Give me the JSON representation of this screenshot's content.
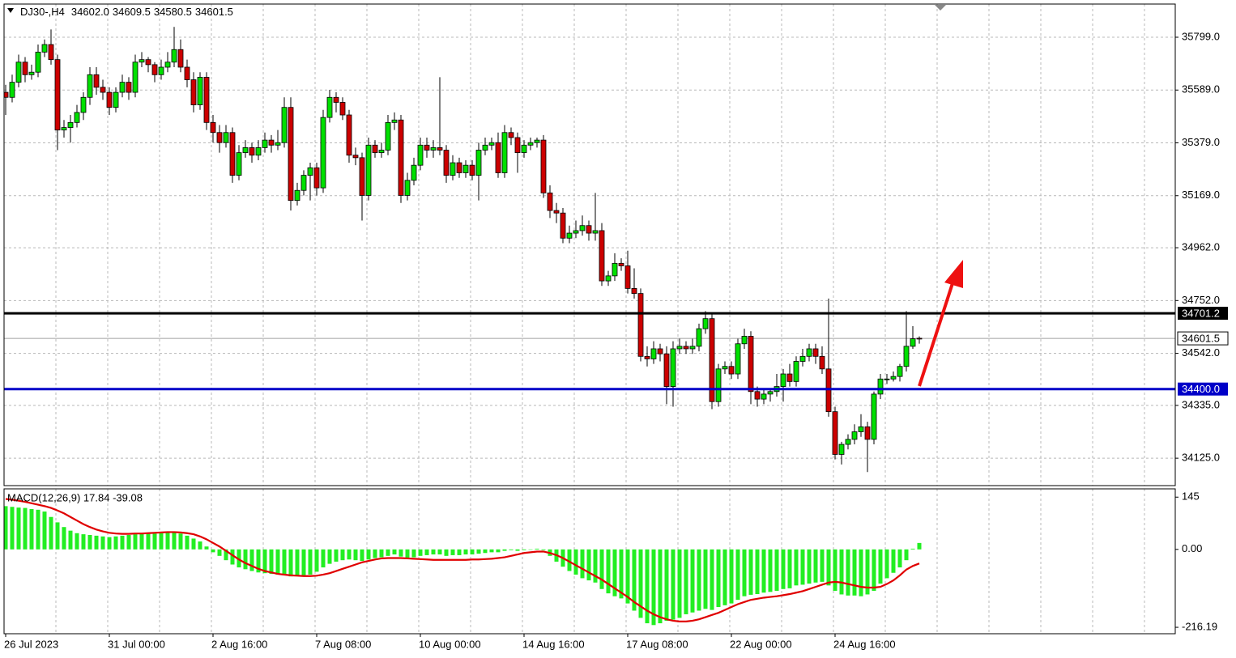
{
  "chart_data": [
    {
      "type": "candlestick",
      "symbol": "DJ30-,H4",
      "ohlc_labels": [
        "34602.0",
        "34609.5",
        "34580.5",
        "34601.5"
      ],
      "categories": [
        "26 Jul 2023",
        null,
        null,
        null,
        null,
        null,
        null,
        null,
        null,
        null,
        null,
        null,
        null,
        null,
        null,
        null,
        "31 Jul 00:00",
        null,
        null,
        null,
        null,
        null,
        null,
        null,
        null,
        null,
        null,
        null,
        null,
        null,
        null,
        null,
        "2 Aug 16:00",
        null,
        null,
        null,
        null,
        null,
        null,
        null,
        null,
        null,
        null,
        null,
        null,
        null,
        null,
        null,
        "7 Aug 08:00",
        null,
        null,
        null,
        null,
        null,
        null,
        null,
        null,
        null,
        null,
        null,
        null,
        null,
        null,
        null,
        "10 Aug 00:00",
        null,
        null,
        null,
        null,
        null,
        null,
        null,
        null,
        null,
        null,
        null,
        null,
        null,
        null,
        null,
        "14 Aug 16:00",
        null,
        null,
        null,
        null,
        null,
        null,
        null,
        null,
        null,
        null,
        null,
        null,
        null,
        null,
        null,
        "17 Aug 08:00",
        null,
        null,
        null,
        null,
        null,
        null,
        null,
        null,
        null,
        null,
        null,
        null,
        null,
        null,
        null,
        "22 Aug 00:00",
        null,
        null,
        null,
        null,
        null,
        null,
        null,
        null,
        null,
        null,
        null,
        null,
        null,
        null,
        null,
        "24 Aug 16:00",
        null,
        null,
        null,
        null,
        null,
        null,
        null,
        null,
        null,
        null,
        null,
        null,
        null
      ],
      "open": [
        35580,
        35560,
        35620,
        35700,
        35650,
        35660,
        35740,
        35770,
        35710,
        35430,
        35440,
        35460,
        35500,
        35560,
        35650,
        35600,
        35580,
        35520,
        35580,
        35620,
        35580,
        35700,
        35710,
        35690,
        35650,
        35680,
        35700,
        35750,
        35680,
        35630,
        35530,
        35640,
        35460,
        35420,
        35380,
        35420,
        35250,
        35340,
        35360,
        35330,
        35360,
        35390,
        35370,
        35380,
        35520,
        35150,
        35190,
        35250,
        35280,
        35200,
        35480,
        35560,
        35540,
        35490,
        35330,
        35320,
        35170,
        35370,
        35340,
        35350,
        35460,
        35470,
        35170,
        35230,
        35290,
        35370,
        35350,
        35360,
        35350,
        35250,
        35300,
        35260,
        35290,
        35250,
        35350,
        35370,
        35380,
        35260,
        35420,
        35400,
        35340,
        35370,
        35380,
        35390,
        35180,
        35110,
        35100,
        35000,
        35020,
        35030,
        35050,
        35020,
        35030,
        34830,
        34850,
        34900,
        34890,
        34800,
        34780,
        34530,
        34520,
        34560,
        34540,
        34410,
        34560,
        34570,
        34560,
        34570,
        34640,
        34680,
        34350,
        34480,
        34490,
        34460,
        34580,
        34610,
        34390,
        34360,
        34380,
        34390,
        34410,
        34460,
        34430,
        34510,
        34530,
        34560,
        34530,
        34480,
        34310,
        34140,
        34180,
        34200,
        34230,
        34250,
        34200,
        34380,
        34440,
        34440,
        34450,
        34490,
        34570,
        34602.0
      ],
      "high": [
        35610,
        35650,
        35730,
        35720,
        35690,
        35770,
        35790,
        35830,
        35730,
        35470,
        35490,
        35530,
        35580,
        35680,
        35680,
        35630,
        35600,
        35600,
        35650,
        35640,
        35730,
        35740,
        35720,
        35700,
        35710,
        35740,
        35840,
        35790,
        35710,
        35660,
        35660,
        35660,
        35490,
        35450,
        35450,
        35440,
        35370,
        35390,
        35380,
        35390,
        35420,
        35410,
        35430,
        35560,
        35560,
        35220,
        35270,
        35300,
        35300,
        35510,
        35590,
        35580,
        35560,
        35510,
        35360,
        35340,
        35400,
        35390,
        35380,
        35490,
        35500,
        35490,
        35260,
        35320,
        35400,
        35400,
        35390,
        35640,
        35370,
        35330,
        35320,
        35310,
        35310,
        35380,
        35400,
        35400,
        35420,
        35450,
        35440,
        35420,
        35390,
        35400,
        35400,
        35410,
        35210,
        35140,
        35120,
        35050,
        35070,
        35090,
        35070,
        35180,
        35060,
        34870,
        34940,
        34920,
        34950,
        34880,
        34800,
        34570,
        34590,
        34580,
        34570,
        34590,
        34600,
        34590,
        34600,
        34660,
        34710,
        34700,
        34500,
        34510,
        34510,
        34600,
        34640,
        34630,
        34410,
        34400,
        34400,
        34460,
        34480,
        34500,
        34530,
        34560,
        34580,
        34580,
        34570,
        34760,
        34330,
        34190,
        34220,
        34260,
        34300,
        34270,
        34390,
        34460,
        34460,
        34470,
        34500,
        34710,
        34650,
        34609.5
      ],
      "low": [
        35490,
        35540,
        35600,
        35620,
        35630,
        35640,
        35720,
        35690,
        35350,
        35400,
        35380,
        35440,
        35470,
        35530,
        35570,
        35550,
        35490,
        35500,
        35560,
        35550,
        35560,
        35680,
        35660,
        35620,
        35630,
        35660,
        35680,
        35660,
        35600,
        35500,
        35510,
        35430,
        35380,
        35340,
        35360,
        35220,
        35230,
        35320,
        35300,
        35310,
        35340,
        35340,
        35350,
        35360,
        35110,
        35130,
        35170,
        35150,
        35170,
        35180,
        35460,
        35500,
        35470,
        35300,
        35290,
        35070,
        35150,
        35320,
        35320,
        35330,
        35430,
        35140,
        35150,
        35210,
        35270,
        35320,
        35320,
        35330,
        35220,
        35230,
        35240,
        35240,
        35230,
        35150,
        35330,
        35350,
        35240,
        35240,
        35370,
        35260,
        35320,
        35350,
        35360,
        35160,
        35080,
        35060,
        34980,
        34980,
        35000,
        35010,
        34990,
        34990,
        34810,
        34810,
        34830,
        34870,
        34780,
        34760,
        34510,
        34490,
        34500,
        34510,
        34340,
        34330,
        34540,
        34540,
        34540,
        34550,
        34620,
        34320,
        34330,
        34460,
        34440,
        34440,
        34560,
        34340,
        34330,
        34340,
        34350,
        34370,
        34350,
        34410,
        34410,
        34490,
        34510,
        34500,
        34460,
        34290,
        34120,
        34100,
        34160,
        34180,
        34210,
        34070,
        34180,
        34360,
        34420,
        34430,
        34430,
        34470,
        34560,
        34580.5
      ],
      "close": [
        35560,
        35620,
        35700,
        35650,
        35660,
        35740,
        35770,
        35710,
        35430,
        35440,
        35460,
        35500,
        35560,
        35650,
        35600,
        35580,
        35520,
        35580,
        35620,
        35580,
        35700,
        35710,
        35690,
        35650,
        35680,
        35700,
        35750,
        35680,
        35630,
        35530,
        35640,
        35460,
        35420,
        35380,
        35420,
        35250,
        35340,
        35360,
        35330,
        35360,
        35390,
        35370,
        35380,
        35520,
        35150,
        35190,
        35250,
        35280,
        35200,
        35480,
        35560,
        35540,
        35490,
        35330,
        35320,
        35170,
        35370,
        35340,
        35350,
        35460,
        35470,
        35170,
        35230,
        35290,
        35370,
        35350,
        35360,
        35350,
        35250,
        35300,
        35260,
        35290,
        35250,
        35350,
        35370,
        35380,
        35260,
        35420,
        35400,
        35340,
        35370,
        35380,
        35390,
        35180,
        35110,
        35100,
        35000,
        35020,
        35030,
        35050,
        35020,
        35030,
        34830,
        34850,
        34900,
        34890,
        34800,
        34780,
        34530,
        34520,
        34560,
        34540,
        34410,
        34560,
        34570,
        34560,
        34570,
        34640,
        34680,
        34350,
        34480,
        34490,
        34460,
        34580,
        34610,
        34390,
        34360,
        34380,
        34390,
        34410,
        34460,
        34430,
        34510,
        34530,
        34560,
        34530,
        34480,
        34310,
        34140,
        34180,
        34200,
        34230,
        34250,
        34200,
        34380,
        34440,
        34440,
        34450,
        34490,
        34570,
        34600,
        34601.5
      ],
      "up_color": "#00e000",
      "down_color": "#cc0000",
      "ylim": [
        34016,
        35931
      ],
      "yticks": [
        {
          "value": 35799,
          "label": "35799.0"
        },
        {
          "value": 35589,
          "label": "35589.0"
        },
        {
          "value": 35379,
          "label": "35379.0"
        },
        {
          "value": 35169,
          "label": "35169.0"
        },
        {
          "value": 34962,
          "label": "34962.0"
        },
        {
          "value": 34752,
          "label": "34752.0"
        },
        {
          "value": 34542,
          "label": "34542.0"
        },
        {
          "value": 34335,
          "label": "34335.0"
        },
        {
          "value": 34125,
          "label": "34125.0"
        }
      ],
      "grid": true,
      "levels": [
        {
          "value": 34701.2,
          "label": "34701.2",
          "color": "#000000"
        },
        {
          "value": 34400.0,
          "label": "34400.0",
          "color": "#0000c8"
        }
      ],
      "current_price": {
        "value": 34601.5,
        "label": "34601.5"
      }
    },
    {
      "type": "macd",
      "title": "MACD(12,26,9) 17.84 -39.08",
      "histogram": {
        "color": "#22ee22",
        "values": [
          120,
          118,
          116,
          115,
          112,
          110,
          105,
          90,
          75,
          62,
          52,
          45,
          42,
          40,
          38,
          36,
          34,
          36,
          38,
          40,
          42,
          44,
          43,
          44,
          45,
          46,
          48,
          44,
          38,
          30,
          22,
          8,
          -8,
          -18,
          -30,
          -42,
          -50,
          -55,
          -60,
          -64,
          -66,
          -68,
          -70,
          -72,
          -75,
          -74,
          -72,
          -70,
          -62,
          -50,
          -40,
          -34,
          -30,
          -28,
          -30,
          -32,
          -28,
          -24,
          -22,
          -18,
          -14,
          -20,
          -24,
          -22,
          -18,
          -16,
          -14,
          -14,
          -18,
          -16,
          -16,
          -14,
          -14,
          -12,
          -10,
          -8,
          -8,
          -4,
          -2,
          -4,
          -2,
          0,
          2,
          -2,
          -18,
          -34,
          -48,
          -60,
          -70,
          -80,
          -86,
          -92,
          -110,
          -122,
          -130,
          -136,
          -150,
          -170,
          -190,
          -205,
          -210,
          -205,
          -198,
          -195,
          -190,
          -180,
          -175,
          -170,
          -165,
          -168,
          -160,
          -155,
          -150,
          -140,
          -130,
          -126,
          -124,
          -120,
          -118,
          -115,
          -110,
          -108,
          -100,
          -98,
          -95,
          -92,
          -90,
          -100,
          -115,
          -125,
          -128,
          -128,
          -130,
          -125,
          -115,
          -95,
          -80,
          -65,
          -50,
          -30,
          2,
          17.84
        ]
      },
      "signal": {
        "color": "#e00000",
        "values": [
          140,
          138,
          135,
          132,
          128,
          124,
          120,
          115,
          108,
          100,
          90,
          80,
          70,
          62,
          55,
          50,
          46,
          44,
          43,
          43,
          44,
          44,
          45,
          46,
          47,
          48,
          48,
          47,
          45,
          42,
          36,
          28,
          18,
          8,
          -4,
          -16,
          -28,
          -38,
          -46,
          -54,
          -60,
          -64,
          -68,
          -70,
          -72,
          -73,
          -74,
          -74,
          -73,
          -70,
          -66,
          -60,
          -54,
          -48,
          -42,
          -36,
          -32,
          -28,
          -25,
          -24,
          -24,
          -24,
          -25,
          -26,
          -27,
          -28,
          -29,
          -29,
          -29,
          -29,
          -29,
          -29,
          -28,
          -28,
          -27,
          -26,
          -24,
          -22,
          -18,
          -14,
          -10,
          -8,
          -6,
          -6,
          -10,
          -16,
          -24,
          -34,
          -44,
          -54,
          -64,
          -74,
          -84,
          -96,
          -108,
          -120,
          -132,
          -146,
          -158,
          -170,
          -180,
          -188,
          -194,
          -198,
          -200,
          -200,
          -198,
          -194,
          -188,
          -182,
          -176,
          -168,
          -160,
          -152,
          -146,
          -140,
          -137,
          -134,
          -132,
          -130,
          -127,
          -124,
          -120,
          -116,
          -110,
          -104,
          -98,
          -92,
          -90,
          -92,
          -96,
          -100,
          -104,
          -106,
          -106,
          -104,
          -96,
          -86,
          -72,
          -56,
          -46,
          -39.08
        ]
      },
      "ylim": [
        -234,
        168
      ],
      "yticks": [
        145,
        {
          "value": 0,
          "label": "0.00"
        },
        {
          "value": -216.19,
          "label": "-216.19"
        }
      ],
      "grid": true
    }
  ]
}
